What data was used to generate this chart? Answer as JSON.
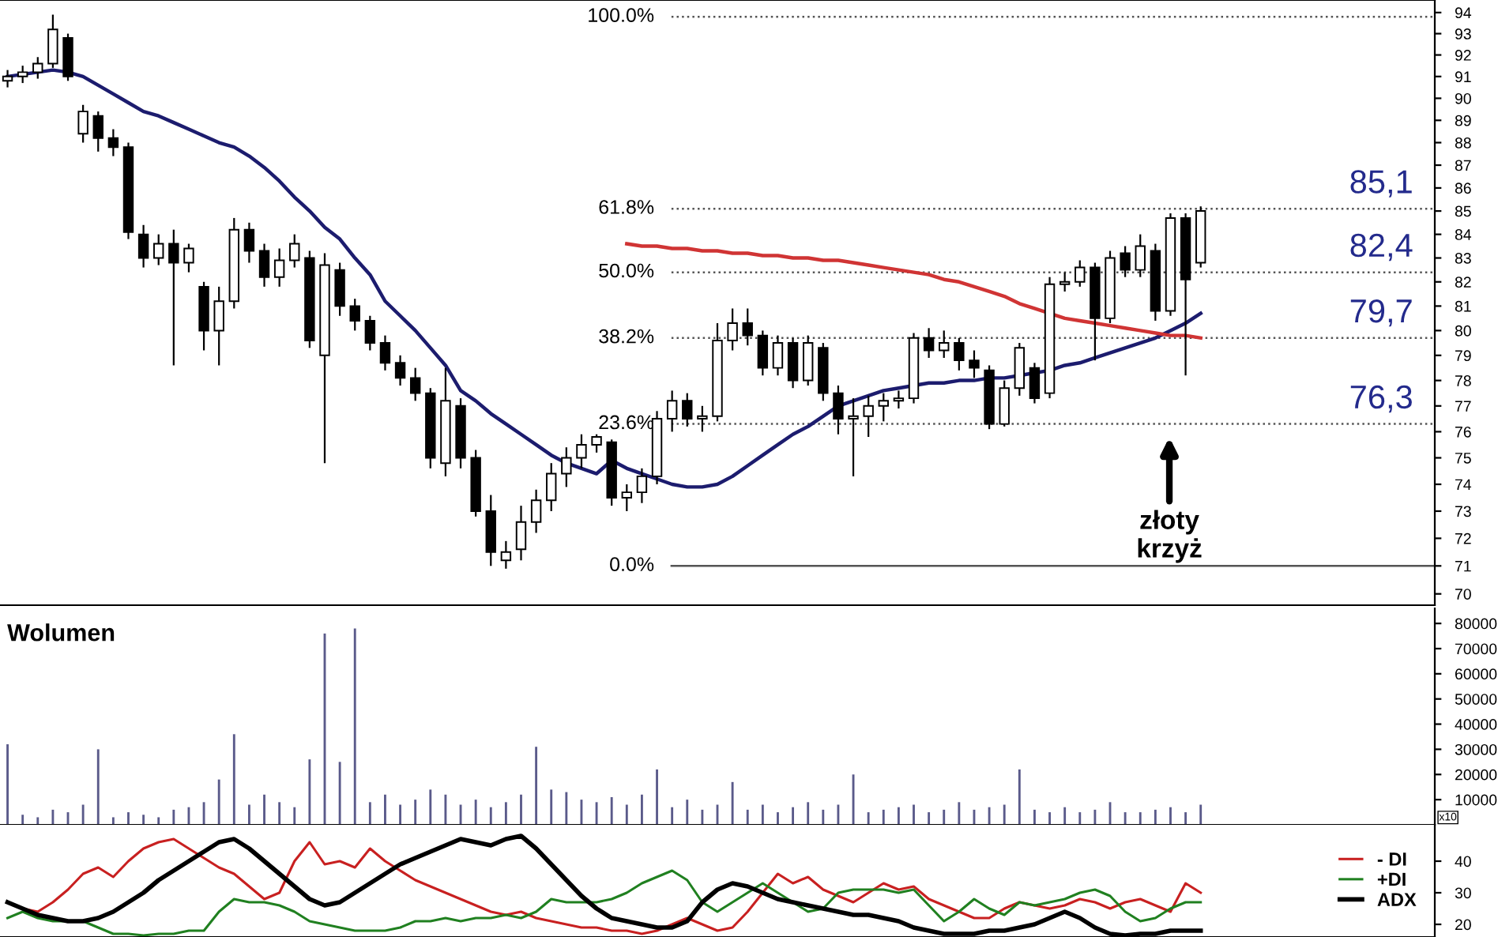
{
  "chart_data": [
    {
      "type": "candlestick",
      "log": true,
      "tick_labels": "y",
      "categories": [
        null,
        null,
        null,
        null,
        null,
        null,
        null,
        null,
        null,
        null,
        null,
        null,
        null,
        null,
        null,
        null,
        null,
        null,
        null,
        null,
        null,
        null,
        null,
        null,
        null,
        null,
        null,
        null,
        null,
        null,
        null,
        null,
        null,
        null,
        null,
        null,
        null,
        null,
        null,
        null,
        null,
        null,
        null,
        null,
        null,
        null,
        null,
        null,
        null,
        null,
        null,
        null,
        null,
        null,
        null,
        null,
        null,
        null,
        null,
        null,
        null,
        null,
        null,
        null,
        null,
        null,
        null,
        null,
        null,
        null,
        null,
        null,
        null,
        null,
        null,
        null,
        null,
        null,
        null,
        null,
        null,
        null,
        null,
        null,
        null,
        null,
        null,
        null,
        null,
        null,
        null,
        null,
        null,
        null,
        null
      ],
      "ohlc": [
        [
          90.8,
          91.3,
          90.5,
          91.0
        ],
        [
          91.0,
          91.5,
          90.7,
          91.2
        ],
        [
          91.2,
          91.9,
          90.9,
          91.6
        ],
        [
          91.6,
          93.9,
          91.4,
          93.2
        ],
        [
          92.8,
          93.0,
          90.8,
          91.0
        ],
        [
          88.4,
          89.7,
          88.0,
          89.4
        ],
        [
          89.2,
          89.4,
          87.6,
          88.2
        ],
        [
          88.2,
          88.6,
          87.4,
          87.8
        ],
        [
          87.8,
          88.0,
          83.8,
          84.1
        ],
        [
          84.0,
          84.4,
          82.6,
          83.0
        ],
        [
          83.0,
          84.0,
          82.7,
          83.6
        ],
        [
          83.6,
          84.2,
          78.6,
          82.8
        ],
        [
          82.8,
          83.6,
          82.4,
          83.4
        ],
        [
          81.8,
          82.0,
          79.2,
          80.0
        ],
        [
          80.0,
          81.8,
          78.6,
          81.2
        ],
        [
          81.2,
          84.7,
          80.9,
          84.2
        ],
        [
          84.2,
          84.5,
          82.8,
          83.3
        ],
        [
          83.3,
          83.6,
          81.8,
          82.2
        ],
        [
          82.2,
          83.4,
          81.8,
          82.9
        ],
        [
          82.9,
          84.0,
          82.6,
          83.6
        ],
        [
          83.0,
          83.3,
          79.3,
          79.6
        ],
        [
          79.0,
          83.2,
          74.8,
          82.7
        ],
        [
          82.5,
          82.8,
          80.6,
          81.0
        ],
        [
          81.0,
          81.3,
          80.0,
          80.4
        ],
        [
          80.4,
          80.6,
          79.2,
          79.5
        ],
        [
          79.5,
          79.8,
          78.4,
          78.7
        ],
        [
          78.7,
          79.0,
          77.8,
          78.1
        ],
        [
          78.1,
          78.5,
          77.2,
          77.5
        ],
        [
          77.5,
          77.7,
          74.6,
          75.0
        ],
        [
          74.8,
          78.5,
          74.3,
          77.2
        ],
        [
          77.0,
          77.3,
          74.6,
          75.0
        ],
        [
          75.0,
          75.3,
          72.8,
          73.0
        ],
        [
          73.0,
          73.6,
          71.0,
          71.5
        ],
        [
          71.2,
          71.9,
          70.9,
          71.5
        ],
        [
          71.6,
          73.2,
          71.2,
          72.6
        ],
        [
          72.6,
          73.8,
          72.2,
          73.4
        ],
        [
          73.4,
          74.8,
          73.0,
          74.4
        ],
        [
          74.4,
          75.4,
          73.9,
          75.0
        ],
        [
          75.0,
          75.9,
          74.6,
          75.5
        ],
        [
          75.5,
          75.9,
          75.2,
          75.8
        ],
        [
          75.6,
          75.7,
          73.2,
          73.5
        ],
        [
          73.5,
          74.0,
          73.0,
          73.7
        ],
        [
          73.7,
          74.6,
          73.3,
          74.3
        ],
        [
          74.3,
          76.8,
          74.0,
          76.5
        ],
        [
          76.5,
          77.6,
          76.0,
          77.2
        ],
        [
          77.2,
          77.5,
          76.2,
          76.5
        ],
        [
          76.5,
          77.0,
          76.0,
          76.6
        ],
        [
          76.6,
          80.3,
          76.4,
          79.6
        ],
        [
          79.6,
          80.9,
          79.2,
          80.3
        ],
        [
          80.3,
          80.9,
          79.4,
          79.8
        ],
        [
          79.8,
          80.0,
          78.2,
          78.5
        ],
        [
          78.5,
          79.8,
          78.2,
          79.5
        ],
        [
          79.5,
          79.7,
          77.7,
          78.0
        ],
        [
          78.0,
          79.8,
          77.8,
          79.5
        ],
        [
          79.3,
          79.5,
          77.2,
          77.5
        ],
        [
          77.5,
          77.8,
          75.9,
          76.5
        ],
        [
          76.5,
          77.3,
          74.3,
          76.6
        ],
        [
          76.6,
          77.4,
          75.8,
          77.0
        ],
        [
          77.0,
          77.5,
          76.4,
          77.2
        ],
        [
          77.2,
          77.6,
          76.9,
          77.3
        ],
        [
          77.3,
          79.9,
          77.1,
          79.7
        ],
        [
          79.7,
          80.1,
          78.9,
          79.2
        ],
        [
          79.2,
          80.0,
          78.9,
          79.5
        ],
        [
          79.5,
          79.7,
          78.4,
          78.8
        ],
        [
          78.8,
          79.2,
          78.1,
          78.5
        ],
        [
          78.4,
          78.6,
          76.1,
          76.3
        ],
        [
          76.3,
          78.0,
          76.2,
          77.7
        ],
        [
          77.7,
          79.5,
          77.4,
          79.3
        ],
        [
          78.5,
          78.7,
          77.1,
          77.3
        ],
        [
          77.5,
          82.2,
          77.3,
          81.9
        ],
        [
          81.9,
          82.4,
          81.6,
          82.0
        ],
        [
          82.0,
          82.9,
          81.8,
          82.6
        ],
        [
          82.6,
          82.8,
          78.8,
          80.5
        ],
        [
          80.5,
          83.3,
          80.3,
          83.0
        ],
        [
          83.2,
          83.5,
          82.2,
          82.5
        ],
        [
          82.5,
          84.0,
          82.2,
          83.5
        ],
        [
          83.3,
          83.6,
          80.4,
          80.8
        ],
        [
          80.8,
          84.9,
          80.6,
          84.7
        ],
        [
          84.7,
          84.9,
          78.2,
          82.1
        ],
        [
          82.8,
          85.2,
          82.6,
          85.0
        ],
        null,
        null,
        null,
        null,
        null,
        null,
        null,
        null,
        null,
        null,
        null,
        null,
        null,
        null,
        null
      ],
      "series": [
        {
          "type": "line",
          "color": "#1c1c6e",
          "values": [
            91.0,
            91.1,
            91.2,
            91.3,
            91.2,
            91.0,
            90.6,
            90.2,
            89.8,
            89.4,
            89.2,
            88.9,
            88.6,
            88.3,
            88.0,
            87.8,
            87.4,
            86.9,
            86.3,
            85.6,
            85.0,
            84.3,
            83.8,
            83.0,
            82.3,
            81.2,
            80.6,
            80.0,
            79.3,
            78.6,
            77.6,
            77.2,
            76.7,
            76.3,
            75.9,
            75.5,
            75.1,
            74.8,
            74.6,
            74.4,
            74.9,
            74.6,
            74.4,
            74.2,
            74.0,
            73.9,
            73.9,
            74.0,
            74.3,
            74.7,
            75.1,
            75.5,
            75.9,
            76.2,
            76.6,
            77.0,
            77.2,
            77.4,
            77.6,
            77.7,
            77.8,
            77.9,
            77.9,
            78.0,
            78.0,
            78.1,
            78.1,
            78.2,
            78.3,
            78.4,
            78.6,
            78.7,
            78.9,
            79.1,
            79.3,
            79.5,
            79.7,
            80.0,
            80.3,
            80.7,
            null,
            null,
            null,
            null,
            null,
            null,
            null,
            null,
            null,
            null,
            null,
            null,
            null,
            null,
            null
          ]
        },
        {
          "type": "line",
          "color": "#d03434",
          "values": [
            null,
            null,
            null,
            null,
            null,
            null,
            null,
            null,
            null,
            null,
            null,
            null,
            null,
            null,
            null,
            null,
            null,
            null,
            null,
            null,
            null,
            null,
            null,
            null,
            null,
            null,
            null,
            null,
            null,
            null,
            null,
            null,
            null,
            null,
            null,
            null,
            null,
            null,
            null,
            null,
            null,
            83.6,
            83.5,
            83.5,
            83.4,
            83.4,
            83.3,
            83.3,
            83.2,
            83.2,
            83.1,
            83.1,
            83.0,
            83.0,
            82.9,
            82.9,
            82.8,
            82.7,
            82.6,
            82.5,
            82.4,
            82.3,
            82.1,
            82.0,
            81.8,
            81.6,
            81.4,
            81.1,
            80.9,
            80.7,
            80.5,
            80.4,
            80.3,
            80.2,
            80.1,
            80.0,
            79.9,
            79.8,
            79.8,
            79.7,
            null,
            null,
            null,
            null,
            null,
            null,
            null,
            null,
            null,
            null,
            null,
            null,
            null,
            null,
            null
          ]
        }
      ],
      "ylim": [
        69.6,
        94.6
      ],
      "yticks": [
        70,
        71,
        72,
        73,
        74,
        75,
        76,
        77,
        78,
        79,
        80,
        81,
        82,
        83,
        84,
        85,
        86,
        87,
        88,
        89,
        90,
        91,
        92,
        93,
        94
      ],
      "ref_lines": [
        {
          "axis": "y",
          "value": 71,
          "line_style": "solid",
          "color": "#555555"
        },
        {
          "axis": "y",
          "value": 76.3,
          "label": "76,3",
          "line_style": "dotted",
          "color": "#555555"
        },
        {
          "axis": "y",
          "value": 79.7,
          "label": "79,7",
          "line_style": "dotted",
          "color": "#555555"
        },
        {
          "axis": "y",
          "value": 82.4,
          "label": "82,4",
          "line_style": "dotted",
          "color": "#555555"
        },
        {
          "axis": "y",
          "value": 85.1,
          "label": "85,1",
          "line_style": "dotted",
          "color": "#555555"
        },
        {
          "axis": "y",
          "value": 93.8,
          "line_style": "dotted",
          "color": "#555555"
        }
      ],
      "annotations": [
        "0.0%",
        "23.6%",
        "38.2%",
        "50.0%",
        "61.8%",
        "100.0%",
        "złoty\nkrzyż"
      ]
    },
    {
      "type": "bar",
      "tick_labels": "y",
      "color": "#5a5a8a",
      "categories": [
        null,
        null,
        null,
        null,
        null,
        null,
        null,
        null,
        null,
        null,
        null,
        null,
        null,
        null,
        null,
        null,
        null,
        null,
        null,
        null,
        null,
        null,
        null,
        null,
        null,
        null,
        null,
        null,
        null,
        null,
        null,
        null,
        null,
        null,
        null,
        null,
        null,
        null,
        null,
        null,
        null,
        null,
        null,
        null,
        null,
        null,
        null,
        null,
        null,
        null,
        null,
        null,
        null,
        null,
        null,
        null,
        null,
        null,
        null,
        null,
        null,
        null,
        null,
        null,
        null,
        null,
        null,
        null,
        null,
        null,
        null,
        null,
        null,
        null,
        null,
        null,
        null,
        null,
        null,
        null,
        null,
        null,
        null,
        null,
        null,
        null,
        null,
        null,
        null,
        null,
        null,
        null,
        null,
        null,
        null
      ],
      "values": [
        32000,
        4000,
        3000,
        6000,
        5000,
        8000,
        30000,
        3000,
        5000,
        4000,
        3000,
        6000,
        7000,
        9000,
        18000,
        36000,
        8000,
        12000,
        9000,
        7000,
        26000,
        76000,
        25000,
        78000,
        9000,
        12000,
        8000,
        10000,
        14000,
        12000,
        8000,
        10000,
        7000,
        9000,
        12000,
        31000,
        14000,
        13000,
        10000,
        9000,
        11000,
        8000,
        12000,
        22000,
        7000,
        10000,
        6000,
        8000,
        17000,
        6000,
        8000,
        5000,
        7000,
        9000,
        6000,
        8000,
        20000,
        5000,
        6000,
        7000,
        8000,
        5000,
        6000,
        9000,
        6000,
        7000,
        8000,
        22000,
        6000,
        5000,
        7000,
        5000,
        6000,
        9000,
        5000,
        5000,
        6000,
        7000,
        5000,
        8000,
        null,
        null,
        null,
        null,
        null,
        null,
        null,
        null,
        null,
        null,
        null,
        null,
        null,
        null,
        null
      ],
      "ylim": [
        0,
        86000
      ],
      "yticks": [
        10000,
        20000,
        30000,
        40000,
        50000,
        60000,
        70000,
        80000
      ],
      "annotations": [
        "Wolumen",
        "x10"
      ]
    },
    {
      "type": "line",
      "tick_labels": "y",
      "legend": "right",
      "categories": [
        null,
        null,
        null,
        null,
        null,
        null,
        null,
        null,
        null,
        null,
        null,
        null,
        null,
        null,
        null,
        null,
        null,
        null,
        null,
        null,
        null,
        null,
        null,
        null,
        null,
        null,
        null,
        null,
        null,
        null,
        null,
        null,
        null,
        null,
        null,
        null,
        null,
        null,
        null,
        null,
        null,
        null,
        null,
        null,
        null,
        null,
        null,
        null,
        null,
        null,
        null,
        null,
        null,
        null,
        null,
        null,
        null,
        null,
        null,
        null,
        null,
        null,
        null,
        null,
        null,
        null,
        null,
        null,
        null,
        null,
        null,
        null,
        null,
        null,
        null,
        null,
        null,
        null,
        null,
        null,
        null,
        null,
        null,
        null,
        null,
        null,
        null,
        null,
        null,
        null,
        null,
        null,
        null,
        null,
        null
      ],
      "series": [
        {
          "name": "- DI",
          "color": "#c82020",
          "values": [
            27,
            25,
            24,
            27,
            31,
            36,
            38,
            35,
            40,
            44,
            46,
            47,
            44,
            41,
            38,
            36,
            32,
            28,
            30,
            40,
            46,
            39,
            40,
            38,
            44,
            40,
            37,
            34,
            32,
            30,
            28,
            26,
            24,
            23,
            24,
            22,
            21,
            20,
            19,
            19,
            18,
            18,
            17,
            18,
            20,
            22,
            20,
            18,
            19,
            24,
            30,
            36,
            33,
            35,
            31,
            29,
            27,
            30,
            33,
            31,
            32,
            28,
            26,
            24,
            22,
            22,
            25,
            27,
            26,
            25,
            26,
            28,
            27,
            25,
            27,
            28,
            26,
            24,
            33,
            30,
            null,
            null,
            null,
            null,
            null,
            null,
            null,
            null,
            null,
            null,
            null,
            null,
            null,
            null,
            null
          ]
        },
        {
          "name": "+DI",
          "color": "#208020",
          "values": [
            22,
            24,
            22,
            21,
            21,
            21,
            19,
            17,
            17,
            16.5,
            17,
            17,
            18,
            18,
            24,
            28,
            27,
            27,
            26,
            24,
            21,
            20,
            19,
            18,
            18,
            18,
            19,
            21,
            21,
            22,
            21,
            22,
            22,
            23,
            22,
            24,
            28,
            27,
            27,
            27,
            28,
            30,
            33,
            35,
            37,
            34,
            27,
            24,
            27,
            30,
            33,
            30,
            27,
            24,
            25,
            30,
            31,
            31,
            31,
            30,
            31,
            26,
            21,
            24,
            28,
            25,
            23,
            27,
            26,
            27,
            28,
            30,
            31,
            29,
            24,
            21,
            22,
            25,
            27,
            27,
            null,
            null,
            null,
            null,
            null,
            null,
            null,
            null,
            null,
            null,
            null,
            null,
            null,
            null,
            null
          ]
        },
        {
          "name": "ADX",
          "color": "#000000",
          "values": [
            27,
            25,
            23,
            22,
            21,
            21,
            22,
            24,
            27,
            30,
            34,
            37,
            40,
            43,
            46,
            47,
            44,
            40,
            36,
            32,
            28,
            26,
            27,
            30,
            33,
            36,
            39,
            41,
            43,
            45,
            47,
            46,
            45,
            47,
            48,
            44,
            39,
            34,
            29,
            25,
            22,
            21,
            20,
            19,
            19,
            21,
            27,
            31,
            33,
            32,
            30,
            28,
            27,
            26,
            25,
            24,
            23,
            23,
            22,
            21,
            19,
            18,
            17,
            17,
            17,
            18,
            18,
            19,
            20,
            22,
            24,
            22,
            19,
            17,
            16.5,
            17,
            17,
            18,
            18,
            18,
            null,
            null,
            null,
            null,
            null,
            null,
            null,
            null,
            null,
            null,
            null,
            null,
            null,
            null,
            null
          ]
        }
      ],
      "ylim": [
        16,
        51.5
      ],
      "yticks": [
        20,
        30,
        40
      ]
    }
  ]
}
